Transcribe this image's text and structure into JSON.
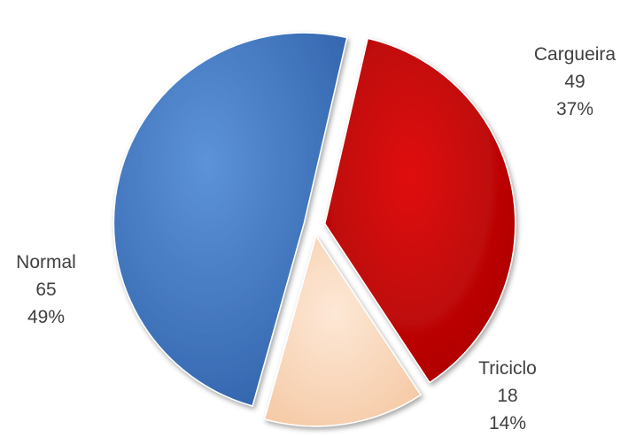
{
  "chart_data": {
    "type": "pie",
    "categories": [
      "Cargueira",
      "Triciclo",
      "Normal"
    ],
    "values": [
      49,
      18,
      65
    ],
    "percent_labels": [
      "37%",
      "14%",
      "49%"
    ],
    "colors": [
      "#c00000",
      "#fbd5b5",
      "#3a75c4"
    ],
    "exploded": true,
    "legend": "none"
  },
  "labels": [
    {
      "name": "Cargueira",
      "value": "49",
      "percent": "37%"
    },
    {
      "name": "Triciclo",
      "value": "18",
      "percent": "14%"
    },
    {
      "name": "Normal",
      "value": "65",
      "percent": "49%"
    }
  ]
}
